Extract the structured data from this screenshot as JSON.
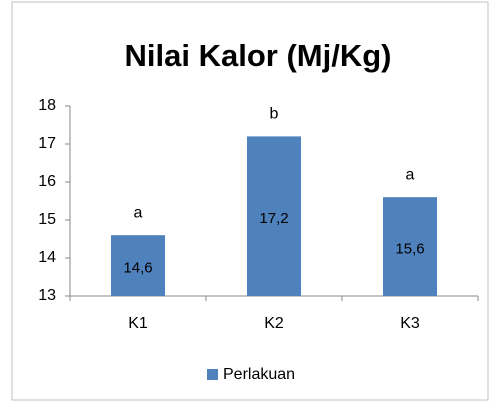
{
  "chart_data": {
    "type": "bar",
    "title": "Nilai Kalor (Mj/Kg)",
    "categories": [
      "K1",
      "K2",
      "K3"
    ],
    "series": [
      {
        "name": "Perlakuan",
        "color": "#4f81bd",
        "values": [
          14.6,
          17.2,
          15.6
        ],
        "value_labels": [
          "14,6",
          "17,2",
          "15,6"
        ]
      }
    ],
    "annotations": [
      "a",
      "b",
      "a"
    ],
    "ylim": [
      13,
      18
    ],
    "yticks": [
      13,
      14,
      15,
      16,
      17,
      18
    ],
    "grid": false,
    "legend": "bottom"
  }
}
